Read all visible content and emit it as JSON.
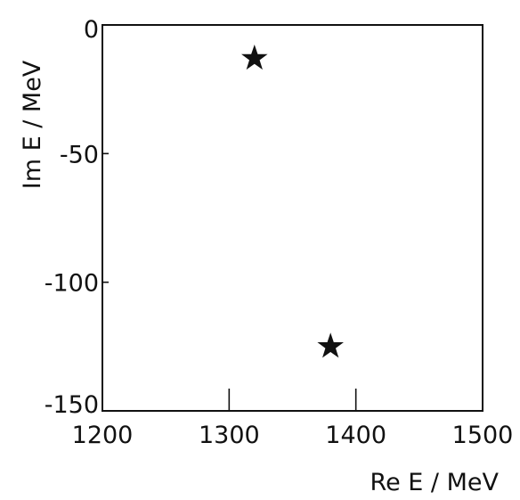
{
  "chart_data": {
    "type": "scatter",
    "xlabel": "Re E / MeV",
    "ylabel": "Im E / MeV",
    "xlim": [
      1200,
      1500
    ],
    "ylim": [
      -150,
      0
    ],
    "x_ticks": [
      1200,
      1300,
      1400,
      1500
    ],
    "y_ticks": [
      0,
      -50,
      -100,
      -150
    ],
    "x_tick_labels": [
      "1200",
      "1300",
      "1400",
      "1500"
    ],
    "y_tick_labels": [
      "0",
      "-50",
      "-100",
      "-150"
    ],
    "grid": false,
    "marker": "star",
    "marker_color": "#111111",
    "points": [
      {
        "x": 1320,
        "y": -13
      },
      {
        "x": 1380,
        "y": -125
      }
    ]
  }
}
